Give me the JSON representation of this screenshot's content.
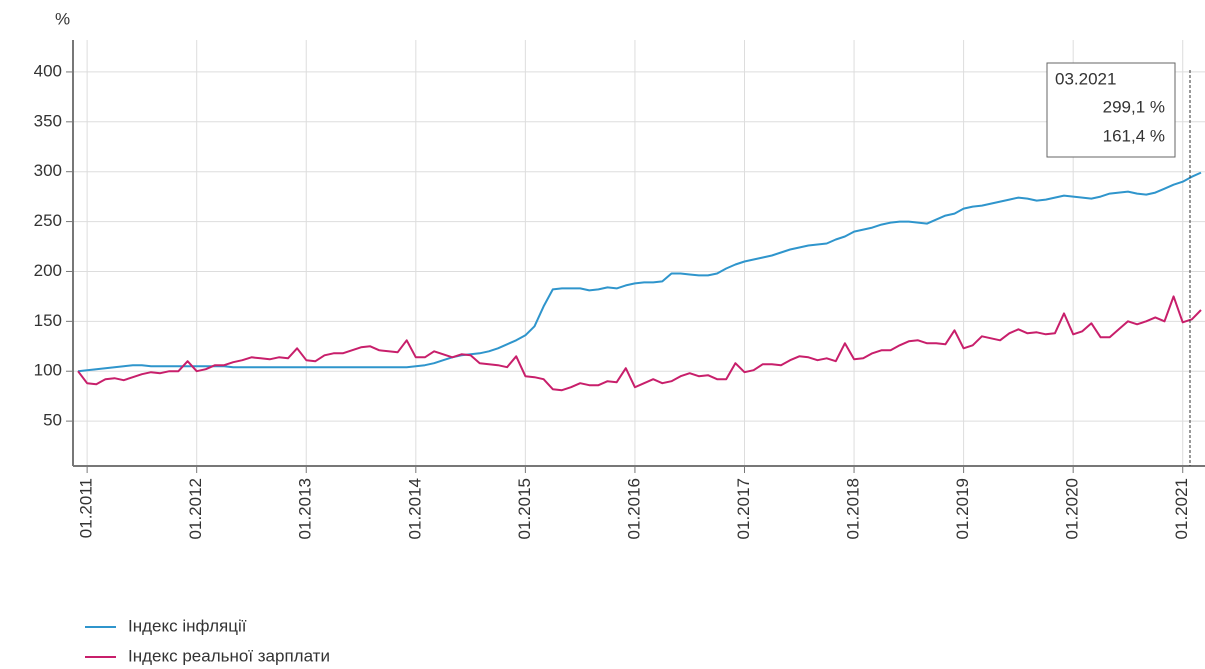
{
  "chart_data": {
    "type": "line",
    "y_label": "%",
    "categories": [
      null,
      "01.2011",
      null,
      null,
      null,
      null,
      null,
      null,
      null,
      null,
      null,
      null,
      null,
      "01.2012",
      null,
      null,
      null,
      null,
      null,
      null,
      null,
      null,
      null,
      null,
      null,
      "01.2013",
      null,
      null,
      null,
      null,
      null,
      null,
      null,
      null,
      null,
      null,
      null,
      "01.2014",
      null,
      null,
      null,
      null,
      null,
      null,
      null,
      null,
      null,
      null,
      null,
      "01.2015",
      null,
      null,
      null,
      null,
      null,
      null,
      null,
      null,
      null,
      null,
      null,
      "01.2016",
      null,
      null,
      null,
      null,
      null,
      null,
      null,
      null,
      null,
      null,
      null,
      "01.2017",
      null,
      null,
      null,
      null,
      null,
      null,
      null,
      null,
      null,
      null,
      null,
      "01.2018",
      null,
      null,
      null,
      null,
      null,
      null,
      null,
      null,
      null,
      null,
      null,
      "01.2019",
      null,
      null,
      null,
      null,
      null,
      null,
      null,
      null,
      null,
      null,
      null,
      "01.2020",
      null,
      null,
      null,
      null,
      null,
      null,
      null,
      null,
      null,
      null,
      null,
      "01.2021",
      null,
      null
    ],
    "series": [
      {
        "name": "Індекс інфляції",
        "color": "#2f95cc",
        "values": [
          100,
          101,
          102,
          103,
          104,
          105,
          106,
          106,
          105,
          105,
          105,
          105,
          105,
          105,
          105,
          105,
          105,
          104,
          104,
          104,
          104,
          104,
          104,
          104,
          104,
          104,
          104,
          104,
          104,
          104,
          104,
          104,
          104,
          104,
          104,
          104,
          104,
          105,
          106,
          108,
          111,
          114,
          116,
          117,
          118,
          120,
          123,
          127,
          131,
          136,
          145,
          165,
          182,
          183,
          183,
          183,
          181,
          182,
          184,
          183,
          186,
          188,
          189,
          189,
          190,
          198,
          198,
          197,
          196,
          196,
          198,
          203,
          207,
          210,
          212,
          214,
          216,
          219,
          222,
          224,
          226,
          227,
          228,
          232,
          235,
          240,
          242,
          244,
          247,
          249,
          250,
          250,
          249,
          248,
          252,
          256,
          258,
          263,
          265,
          266,
          268,
          270,
          272,
          274,
          273,
          271,
          272,
          274,
          276,
          275,
          274,
          273,
          275,
          278,
          279,
          280,
          278,
          277,
          279,
          283,
          287,
          290,
          295,
          299.1
        ]
      },
      {
        "name": "Індекс реальної зарплати",
        "color": "#c81f6b",
        "values": [
          100,
          88,
          87,
          92,
          93,
          91,
          94,
          97,
          99,
          98,
          100,
          100,
          110,
          100,
          102,
          106,
          106,
          109,
          111,
          114,
          113,
          112,
          114,
          113,
          123,
          111,
          110,
          116,
          118,
          118,
          121,
          124,
          125,
          121,
          120,
          119,
          131,
          114,
          114,
          120,
          117,
          114,
          117,
          116,
          108,
          107,
          106,
          104,
          115,
          95,
          94,
          92,
          82,
          81,
          84,
          88,
          86,
          86,
          90,
          89,
          103,
          84,
          88,
          92,
          88,
          90,
          95,
          98,
          95,
          96,
          92,
          92,
          108,
          99,
          101,
          107,
          107,
          106,
          111,
          115,
          114,
          111,
          113,
          110,
          128,
          112,
          113,
          118,
          121,
          121,
          126,
          130,
          131,
          128,
          128,
          127,
          141,
          123,
          126,
          135,
          133,
          131,
          138,
          142,
          138,
          139,
          137,
          138,
          158,
          137,
          140,
          148,
          134,
          134,
          142,
          150,
          147,
          150,
          154,
          150,
          175,
          149,
          152,
          161.4
        ]
      }
    ],
    "ylim": [
      5,
      430
    ],
    "yticks": [
      50,
      100,
      150,
      200,
      250,
      300,
      350,
      400
    ],
    "grid": true,
    "tooltip": {
      "label": "03.2021",
      "lines": [
        "299,1 %",
        "161,4 %"
      ]
    }
  }
}
